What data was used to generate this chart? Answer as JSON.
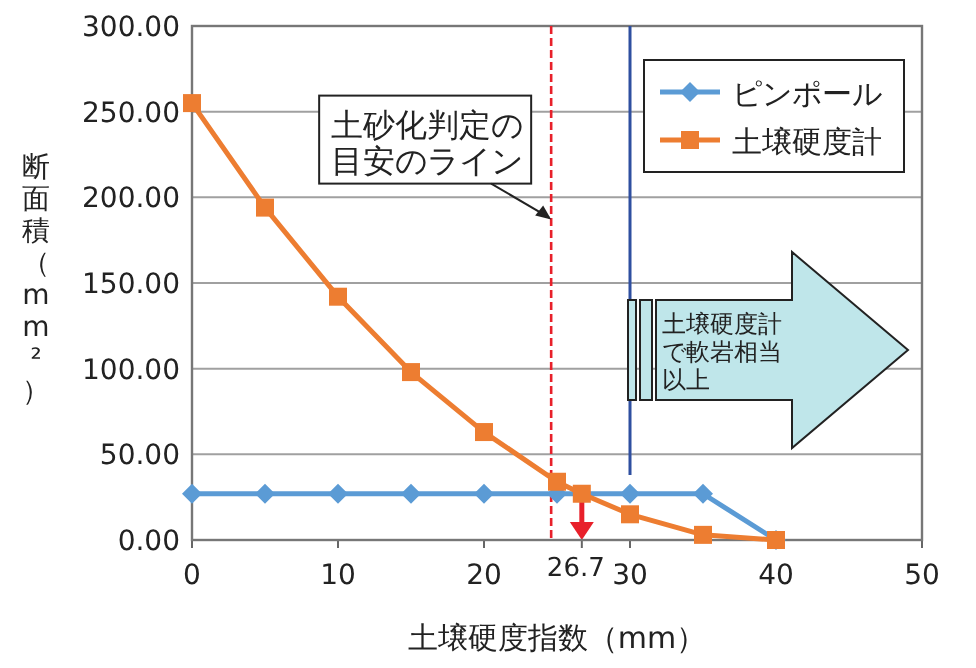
{
  "chart_data": {
    "type": "line",
    "xlabel": "土壌硬度指数（mm）",
    "ylabel": "断面積（mm²）",
    "xlim": [
      0,
      50
    ],
    "xticks": [
      0,
      10,
      20,
      {
        "value": 26.7,
        "label": "26.7"
      },
      30,
      40,
      50
    ],
    "ylim": [
      0,
      300
    ],
    "yticks": [
      {
        "value": 0,
        "label": "0.00"
      },
      {
        "value": 50,
        "label": "50.00"
      },
      {
        "value": 100,
        "label": "100.00"
      },
      {
        "value": 150,
        "label": "150.00"
      },
      {
        "value": 200,
        "label": "200.00"
      },
      {
        "value": 250,
        "label": "250.00"
      },
      {
        "value": 300,
        "label": "300.00"
      }
    ],
    "series": [
      {
        "name": "ピンポール",
        "color": "#5b9bd5",
        "marker": "diamond",
        "x": [
          0,
          5,
          10,
          15,
          20,
          25,
          30,
          35,
          40
        ],
        "values": [
          27,
          27,
          27,
          27,
          27,
          27,
          27,
          27,
          0
        ]
      },
      {
        "name": "土壌硬度計",
        "color": "#ed7d31",
        "marker": "square",
        "x": [
          0,
          5,
          10,
          15,
          20,
          25,
          26.7,
          30,
          35,
          40
        ],
        "values": [
          255,
          194,
          142,
          98,
          63,
          34,
          27,
          15,
          3,
          0
        ]
      },
      {
        "color": "#2e4fa0",
        "marker": "none",
        "x": [
          30,
          30
        ],
        "values": [
          38,
          300
        ]
      }
    ],
    "ref_lines": [
      {
        "axis": "x",
        "value": 24.6,
        "color": "#e8202a",
        "line_style": "dashed"
      }
    ],
    "annotations": [
      {
        "text": "土砂化判定の目安のライン",
        "x": 24.6,
        "y": 187
      },
      "土壌硬度計で軟岩相当以上"
    ],
    "grid": "y",
    "legend": "top right"
  }
}
